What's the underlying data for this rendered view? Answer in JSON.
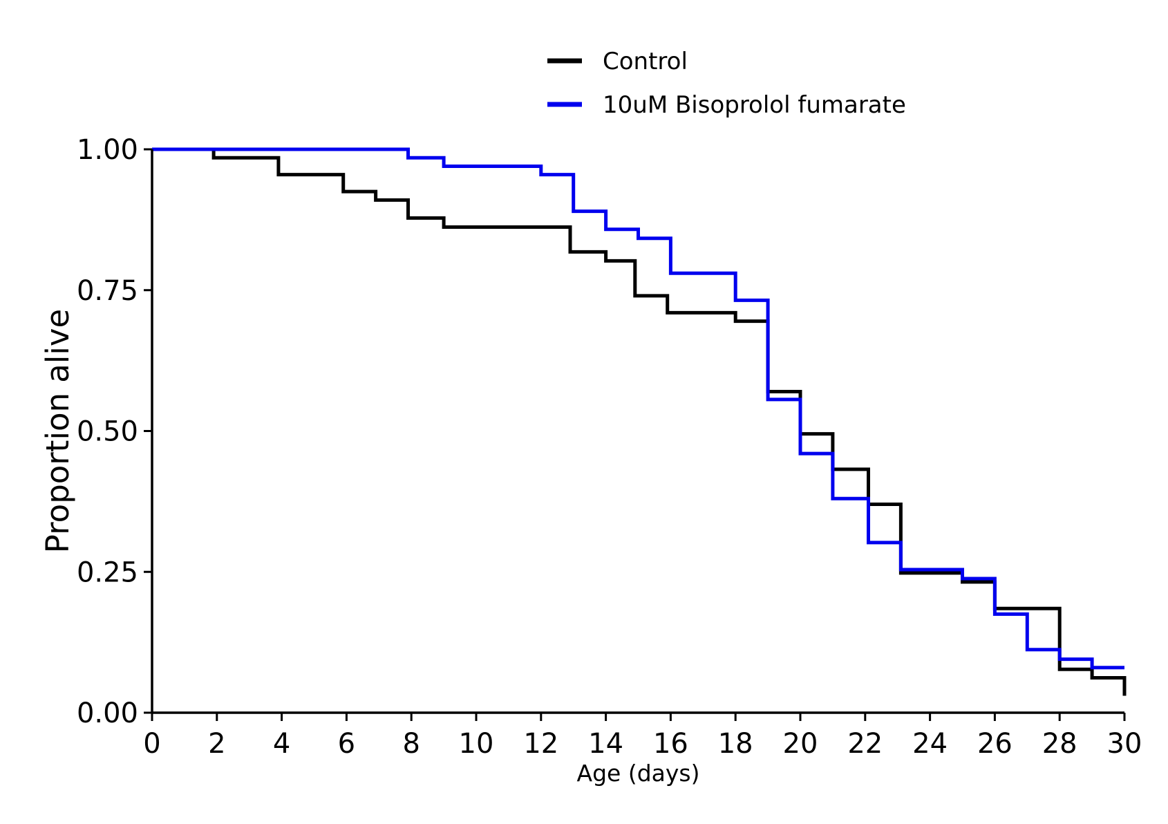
{
  "chart_data": {
    "type": "line",
    "step": "post",
    "xlabel": "Age (days)",
    "ylabel": "Proportion alive",
    "xlim": [
      0,
      30
    ],
    "ylim": [
      0,
      1
    ],
    "x_ticks": [
      0,
      2,
      4,
      6,
      8,
      10,
      12,
      14,
      16,
      18,
      20,
      22,
      24,
      26,
      28,
      30
    ],
    "y_ticks": [
      0.0,
      0.25,
      0.5,
      0.75,
      1.0
    ],
    "x_tick_labels": [
      "0",
      "2",
      "4",
      "6",
      "8",
      "10",
      "12",
      "14",
      "16",
      "18",
      "20",
      "22",
      "24",
      "26",
      "28",
      "30"
    ],
    "y_tick_labels": [
      "0.00",
      "0.25",
      "0.50",
      "0.75",
      "1.00"
    ],
    "grid": false,
    "legend_position": "top-center",
    "series": [
      {
        "name": "Control",
        "color": "#000000",
        "x": [
          0,
          1.9,
          3.9,
          5.9,
          6.9,
          7.9,
          9.0,
          12.9,
          14.0,
          14.9,
          15.9,
          18.0,
          19.0,
          20.0,
          21.0,
          22.1,
          23.1,
          25.0,
          26.0,
          28.0,
          29.0,
          30.0
        ],
        "y": [
          1.0,
          0.985,
          0.955,
          0.925,
          0.91,
          0.878,
          0.862,
          0.818,
          0.802,
          0.74,
          0.71,
          0.695,
          0.57,
          0.495,
          0.432,
          0.37,
          0.248,
          0.232,
          0.185,
          0.077,
          0.062,
          0.03
        ]
      },
      {
        "name": "10uM Bisoprolol fumarate",
        "color": "#0000ee",
        "x": [
          0,
          7.9,
          9.0,
          12.0,
          13.0,
          14.0,
          15.0,
          16.0,
          18.0,
          19.0,
          20.0,
          21.0,
          22.1,
          23.1,
          25.0,
          26.0,
          27.0,
          28.0,
          29.0,
          30.0
        ],
        "y": [
          1.0,
          0.985,
          0.97,
          0.955,
          0.89,
          0.858,
          0.842,
          0.78,
          0.732,
          0.556,
          0.46,
          0.38,
          0.302,
          0.254,
          0.238,
          0.175,
          0.112,
          0.095,
          0.08,
          0.08
        ]
      }
    ]
  }
}
